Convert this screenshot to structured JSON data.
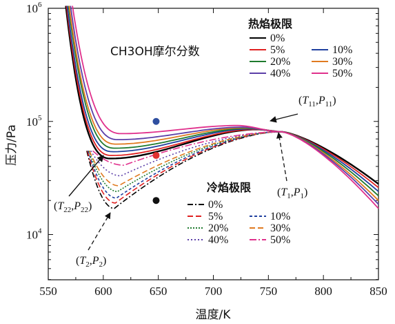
{
  "chart_data": {
    "type": "line",
    "xlabel": "温度/K",
    "ylabel": "压力/Pa",
    "xlim": [
      550,
      850
    ],
    "ylim_log10": [
      3.6,
      6.0
    ],
    "x_ticks": [
      "550",
      "600",
      "650",
      "700",
      "750",
      "800",
      "850"
    ],
    "y_ticks": [
      {
        "base": "10",
        "exp": "4",
        "log10": 4
      },
      {
        "base": "10",
        "exp": "5",
        "log10": 5
      },
      {
        "base": "10",
        "exp": "6",
        "log10": 6
      }
    ],
    "annotation_main": "CH3OH摩尔分数",
    "hot_limit_title": "热焰极限",
    "cold_limit_title": "冷焰极限",
    "hot_series": [
      {
        "name": "0%",
        "color": "#000000",
        "min_x": 607,
        "min_P": 47000,
        "peak_x": 740,
        "peak_P": 85000,
        "end_P": 28000
      },
      {
        "name": "5%",
        "color": "#e02020",
        "min_x": 608,
        "min_P": 50000,
        "peak_x": 738,
        "peak_P": 85000,
        "end_P": 26000
      },
      {
        "name": "10%",
        "color": "#1f3f9f",
        "min_x": 609,
        "min_P": 54000,
        "peak_x": 735,
        "peak_P": 86000,
        "end_P": 24000
      },
      {
        "name": "20%",
        "color": "#1e7a2e",
        "min_x": 611,
        "min_P": 58000,
        "peak_x": 733,
        "peak_P": 87000,
        "end_P": 22000
      },
      {
        "name": "30%",
        "color": "#e07a20",
        "min_x": 612,
        "min_P": 63000,
        "peak_x": 730,
        "peak_P": 88000,
        "end_P": 20000
      },
      {
        "name": "40%",
        "color": "#5b3fa8",
        "min_x": 614,
        "min_P": 69000,
        "peak_x": 727,
        "peak_P": 89000,
        "end_P": 18500
      },
      {
        "name": "50%",
        "color": "#e0308c",
        "min_x": 617,
        "min_P": 78000,
        "peak_x": 722,
        "peak_P": 92000,
        "end_P": 17000
      }
    ],
    "cold_series": [
      {
        "name": "0%",
        "color": "#000000",
        "min_x": 610,
        "min_P": 17000
      },
      {
        "name": "5%",
        "color": "#e02020",
        "min_x": 611,
        "min_P": 19000
      },
      {
        "name": "10%",
        "color": "#1f3f9f",
        "min_x": 612,
        "min_P": 21000
      },
      {
        "name": "20%",
        "color": "#1e7a2e",
        "min_x": 613,
        "min_P": 24000
      },
      {
        "name": "30%",
        "color": "#e07a20",
        "min_x": 614,
        "min_P": 27000
      },
      {
        "name": "40%",
        "color": "#5b3fa8",
        "min_x": 616,
        "min_P": 33000
      },
      {
        "name": "50%",
        "color": "#e0308c",
        "min_x": 619,
        "min_P": 41000
      }
    ],
    "dots": [
      {
        "x": 648,
        "P": 100000,
        "color": "#2f4fa0"
      },
      {
        "x": 648,
        "P": 50000,
        "color": "#e03030"
      },
      {
        "x": 648,
        "P": 20000,
        "color": "#111111"
      }
    ],
    "annotations": [
      {
        "main": "T",
        "sub1": "11",
        "main2": "P",
        "sub2": "11"
      },
      {
        "main": "T",
        "sub1": "22",
        "main2": "P",
        "sub2": "22"
      },
      {
        "main": "T",
        "sub1": "1",
        "main2": "P",
        "sub2": "1"
      },
      {
        "main": "T",
        "sub1": "2",
        "main2": "P",
        "sub2": "2"
      }
    ]
  }
}
